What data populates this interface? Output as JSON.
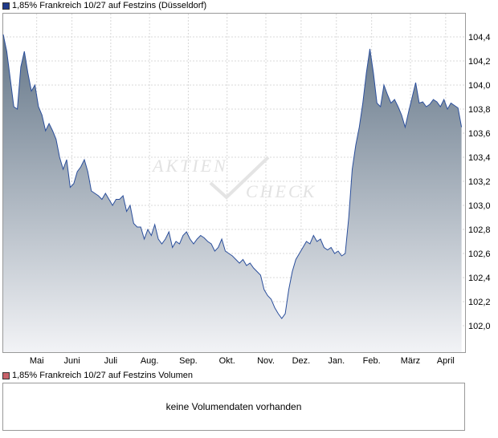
{
  "chart_data": {
    "type": "area",
    "title": "1,85% Frankreich 10/27 auf Festzins (Düsseldorf)",
    "xlabel": "",
    "ylabel": "",
    "ylim": [
      101.8,
      104.5
    ],
    "y_ticks": [
      "104,4",
      "104,2",
      "104,0",
      "103,8",
      "103,6",
      "103,4",
      "103,2",
      "103,0",
      "102,8",
      "102,6",
      "102,4",
      "102,2",
      "102,0"
    ],
    "y_tick_values": [
      104.4,
      104.2,
      104.0,
      103.8,
      103.6,
      103.4,
      103.2,
      103.0,
      102.8,
      102.6,
      102.4,
      102.2,
      102.0
    ],
    "x_ticks": [
      "Mai",
      "Juni",
      "Juli",
      "Aug.",
      "Sep.",
      "Okt.",
      "Nov.",
      "Dez.",
      "Jan.",
      "Feb.",
      "März",
      "April"
    ],
    "x_tick_positions": [
      9.5,
      19.5,
      30.5,
      41.5,
      52.5,
      63.5,
      74.5,
      84.5,
      94.5,
      104.5,
      115.5,
      125.5
    ],
    "x_range": [
      0,
      131
    ],
    "grid": true,
    "colors": {
      "line": "#2b4f9c",
      "fill_top": "#647688",
      "fill_bottom": "#f2f3f6",
      "grid": "#d8d8d8"
    },
    "series": [
      {
        "name": "1,85% Frankreich 10/27 auf Festzins",
        "x": [
          0,
          1,
          2,
          3,
          4,
          5,
          6,
          7,
          8,
          9,
          10,
          11,
          12,
          13,
          14,
          15,
          16,
          17,
          18,
          19,
          20,
          21,
          22,
          23,
          24,
          25,
          26,
          27,
          28,
          29,
          30,
          31,
          32,
          33,
          34,
          35,
          36,
          37,
          38,
          39,
          40,
          41,
          42,
          43,
          44,
          45,
          46,
          47,
          48,
          49,
          50,
          51,
          52,
          53,
          54,
          55,
          56,
          57,
          58,
          59,
          60,
          61,
          62,
          63,
          64,
          65,
          66,
          67,
          68,
          69,
          70,
          71,
          72,
          73,
          74,
          75,
          76,
          77,
          78,
          79,
          80,
          81,
          82,
          83,
          84,
          85,
          86,
          87,
          88,
          89,
          90,
          91,
          92,
          93,
          94,
          95,
          96,
          97,
          98,
          99,
          100,
          101,
          102,
          103,
          104,
          105,
          106,
          107,
          108,
          109,
          110,
          111,
          112,
          113,
          114,
          115,
          116,
          117,
          118,
          119,
          120,
          121,
          122,
          123,
          124,
          125,
          126,
          127,
          128,
          129,
          130
        ],
        "values": [
          104.42,
          104.28,
          104.05,
          103.82,
          103.8,
          104.15,
          104.28,
          104.1,
          103.95,
          104.0,
          103.82,
          103.75,
          103.62,
          103.68,
          103.62,
          103.55,
          103.4,
          103.3,
          103.38,
          103.15,
          103.18,
          103.28,
          103.32,
          103.38,
          103.28,
          103.12,
          103.1,
          103.08,
          103.05,
          103.1,
          103.05,
          103.0,
          103.05,
          103.05,
          103.08,
          102.95,
          103.0,
          102.85,
          102.82,
          102.82,
          102.72,
          102.8,
          102.75,
          102.84,
          102.72,
          102.68,
          102.72,
          102.78,
          102.65,
          102.7,
          102.68,
          102.75,
          102.78,
          102.72,
          102.68,
          102.72,
          102.75,
          102.73,
          102.7,
          102.68,
          102.62,
          102.65,
          102.72,
          102.62,
          102.6,
          102.58,
          102.55,
          102.52,
          102.55,
          102.5,
          102.52,
          102.48,
          102.45,
          102.42,
          102.3,
          102.25,
          102.22,
          102.15,
          102.1,
          102.06,
          102.1,
          102.3,
          102.45,
          102.55,
          102.6,
          102.65,
          102.7,
          102.68,
          102.75,
          102.7,
          102.72,
          102.65,
          102.63,
          102.65,
          102.6,
          102.62,
          102.58,
          102.6,
          102.9,
          103.3,
          103.5,
          103.65,
          103.85,
          104.1,
          104.3,
          104.1,
          103.85,
          103.82,
          104.0,
          103.92,
          103.85,
          103.88,
          103.82,
          103.75,
          103.65,
          103.78,
          103.9,
          104.02,
          103.85,
          103.86,
          103.82,
          103.84,
          103.88,
          103.86,
          103.82,
          103.88,
          103.8,
          103.85,
          103.83,
          103.81,
          103.65
        ]
      }
    ],
    "watermark": {
      "line1": "AKTIEN",
      "line2": "CHECK"
    }
  },
  "legend_price": {
    "label": "1,85% Frankreich 10/27 auf Festzins (Düsseldorf)",
    "color": "#1f3a8a"
  },
  "legend_volume": {
    "label": "1,85% Frankreich 10/27 auf Festzins Volumen",
    "color": "#c8626a"
  },
  "volume_panel": {
    "message": "keine Volumendaten vorhanden"
  }
}
